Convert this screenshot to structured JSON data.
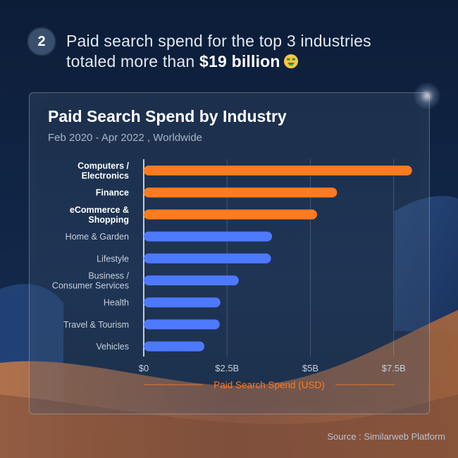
{
  "header": {
    "step_number": "2",
    "headline_line1": "Paid search spend for the top 3 industries",
    "headline_line2_prefix": "totaled more than ",
    "headline_highlight": "$19 billion"
  },
  "colors": {
    "highlight_bar": "#ff7b1f",
    "default_bar": "#4d79ff",
    "axis_label": "#ff7b1f"
  },
  "chart_data": {
    "type": "bar",
    "orientation": "horizontal",
    "title": "Paid Search Spend by Industry",
    "subtitle": "Feb 2020 - Apr 2022 , Worldwide",
    "categories": [
      {
        "line1": "Computers /",
        "line2": "Electronics"
      },
      {
        "line1": "Finance",
        "line2": ""
      },
      {
        "line1": "eCommerce &",
        "line2": "Shopping"
      },
      {
        "line1": "Home & Garden",
        "line2": ""
      },
      {
        "line1": "Lifestyle",
        "line2": ""
      },
      {
        "line1": "Business /",
        "line2": "Consumer Services"
      },
      {
        "line1": "Health",
        "line2": ""
      },
      {
        "line1": "Travel & Tourism",
        "line2": ""
      },
      {
        "line1": "Vehicles",
        "line2": ""
      }
    ],
    "values": [
      8.05,
      5.8,
      5.2,
      3.85,
      3.82,
      2.85,
      2.3,
      2.28,
      1.82
    ],
    "highlighted": [
      true,
      true,
      true,
      false,
      false,
      false,
      false,
      false,
      false
    ],
    "xlim": [
      0,
      8.3
    ],
    "ticks": [
      {
        "value": 0,
        "label": "$0"
      },
      {
        "value": 2.5,
        "label": "$2.5B"
      },
      {
        "value": 5,
        "label": "$5B"
      },
      {
        "value": 7.5,
        "label": "$7.5B"
      }
    ],
    "xlabel": "Paid Search Spend (USD)",
    "unit": "billion USD",
    "grid": true
  },
  "footer": {
    "source": "Source : Similarweb Platform"
  }
}
